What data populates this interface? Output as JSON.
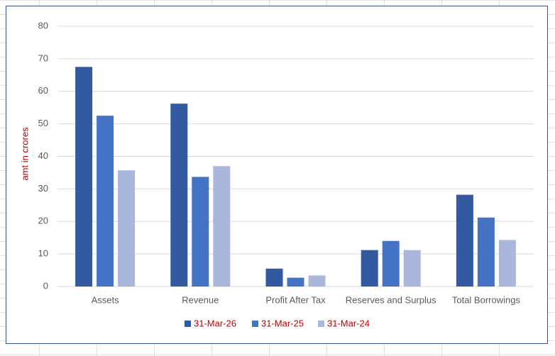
{
  "chart_data": {
    "type": "bar",
    "y_label": "amt in crores",
    "categories": [
      "Assets",
      "Revenue",
      "Profit After Tax",
      "Reserves and Surplus",
      "Total Borrowings"
    ],
    "series": [
      {
        "name": "31-Mar-26",
        "color": "#335aa1",
        "values": [
          67.5,
          56.2,
          5.5,
          11.2,
          28.2
        ]
      },
      {
        "name": "31-Mar-25",
        "color": "#4472c4",
        "values": [
          52.5,
          33.7,
          2.7,
          14.0,
          21.2
        ]
      },
      {
        "name": "31-Mar-24",
        "color": "#a9b7dd",
        "values": [
          35.7,
          37.0,
          3.4,
          11.2,
          14.3
        ]
      }
    ],
    "ylim": [
      0,
      80
    ],
    "yticks": [
      0,
      10,
      20,
      30,
      40,
      50,
      60,
      70,
      80
    ],
    "grid": true,
    "legend": "bottom",
    "label_color": "#c00000"
  }
}
